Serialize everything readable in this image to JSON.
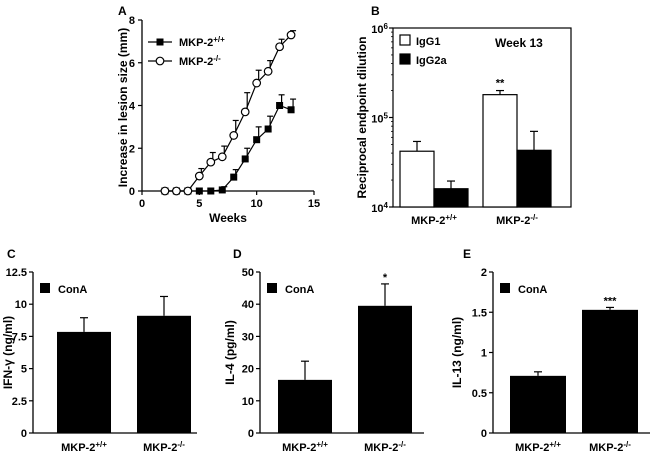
{
  "chart_data": [
    {
      "panel": "A",
      "type": "line",
      "xlabel": "Weeks",
      "ylabel": "Increase in lesion size (mm)",
      "xlim": [
        0,
        15
      ],
      "ylim": [
        0,
        8
      ],
      "xticks": [
        "0",
        "5",
        "10",
        "15"
      ],
      "yticks": [
        "0",
        "2",
        "4",
        "6",
        "8"
      ],
      "legend_position": "top-left",
      "series": [
        {
          "name": "MKP-2",
          "sup": "+/+",
          "marker": "filled-square",
          "x": [
            2,
            3,
            4,
            5,
            6,
            7,
            8,
            9,
            10,
            11,
            12,
            13
          ],
          "y": [
            0,
            0,
            0,
            0,
            0,
            0.05,
            0.65,
            1.5,
            2.4,
            2.9,
            4.0,
            3.8
          ],
          "err": [
            0,
            0,
            0,
            0,
            0,
            0.15,
            0.35,
            0.5,
            0.6,
            0.6,
            0.5,
            0.5
          ]
        },
        {
          "name": "MKP-2",
          "sup": "-/-",
          "marker": "open-circle",
          "x": [
            2,
            3,
            4,
            5,
            6,
            7,
            8,
            9,
            10,
            11,
            12,
            13
          ],
          "y": [
            0,
            0,
            0,
            0.7,
            1.35,
            1.6,
            2.6,
            3.7,
            5.05,
            5.6,
            6.75,
            7.3
          ],
          "err": [
            0,
            0,
            0,
            0.35,
            0.45,
            0.5,
            0.7,
            0.9,
            0.6,
            0.5,
            0.35,
            0.2
          ]
        }
      ]
    },
    {
      "panel": "B",
      "type": "bar",
      "scale": "log",
      "ylabel": "Reciprocal endpoint dilution",
      "annotation": "Week 13",
      "ylim": [
        10000,
        1000000
      ],
      "yticks": [
        {
          "base": "10",
          "exp": "4"
        },
        {
          "base": "10",
          "exp": "5"
        },
        {
          "base": "10",
          "exp": "6"
        }
      ],
      "categories": [
        {
          "name": "MKP-2",
          "sup": "+/+"
        },
        {
          "name": "MKP-2",
          "sup": "-/-"
        }
      ],
      "series": [
        {
          "name": "IgG1",
          "fill": "#ffffff",
          "values": [
            42000,
            180000
          ],
          "err": [
            12000,
            20000
          ]
        },
        {
          "name": "IgG2a",
          "fill": "#000000",
          "values": [
            16000,
            43000
          ],
          "err": [
            3500,
            27000
          ]
        }
      ],
      "significance": [
        {
          "category": 1,
          "series": 0,
          "label": "**"
        }
      ]
    },
    {
      "panel": "C",
      "type": "bar",
      "ylabel": "IFN-γ (ng/ml)",
      "legend": "ConA",
      "ylim": [
        0,
        12.5
      ],
      "yticks": [
        "0",
        "2.5",
        "5",
        "7.5",
        "10",
        "12.5"
      ],
      "categories": [
        {
          "name": "MKP-2",
          "sup": "+/+"
        },
        {
          "name": "MKP-2",
          "sup": "-/-"
        }
      ],
      "values": [
        7.85,
        9.1
      ],
      "err": [
        1.1,
        1.5
      ],
      "significance": []
    },
    {
      "panel": "D",
      "type": "bar",
      "ylabel": "IL-4 (pg/ml)",
      "legend": "ConA",
      "ylim": [
        0,
        50
      ],
      "yticks": [
        "0",
        "10",
        "20",
        "30",
        "40",
        "50"
      ],
      "categories": [
        {
          "name": "MKP-2",
          "sup": "+/+"
        },
        {
          "name": "MKP-2",
          "sup": "-/-"
        }
      ],
      "values": [
        16.5,
        39.5
      ],
      "err": [
        5.8,
        6.8
      ],
      "significance": [
        {
          "category": 1,
          "label": "*"
        }
      ]
    },
    {
      "panel": "E",
      "type": "bar",
      "ylabel": "IL-13 (ng/ml)",
      "legend": "ConA",
      "ylim": [
        0,
        2
      ],
      "yticks": [
        "0",
        "0.5",
        "1",
        "1.5",
        "2"
      ],
      "categories": [
        {
          "name": "MKP-2",
          "sup": "+/+"
        },
        {
          "name": "MKP-2",
          "sup": "-/-"
        }
      ],
      "values": [
        0.71,
        1.53
      ],
      "err": [
        0.05,
        0.03
      ],
      "significance": [
        {
          "category": 1,
          "label": "***"
        }
      ]
    }
  ]
}
